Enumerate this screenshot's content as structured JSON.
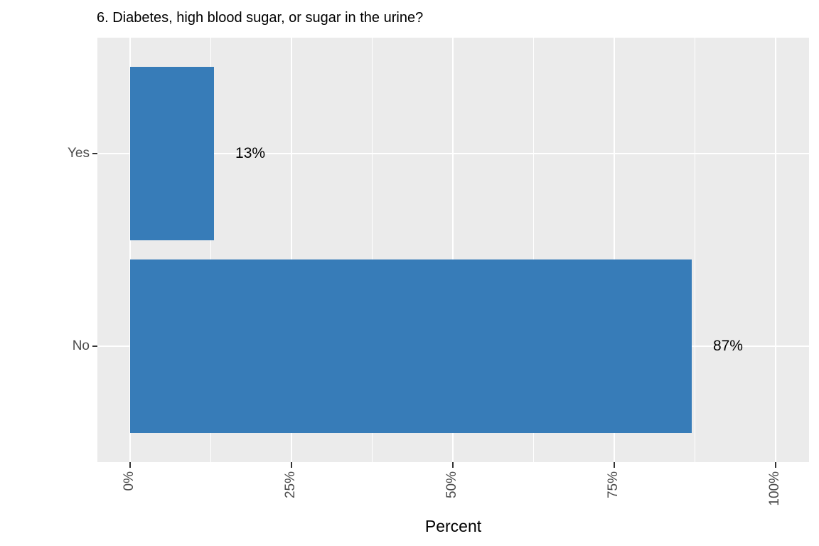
{
  "chart_data": {
    "type": "bar",
    "orientation": "horizontal",
    "title": "6. Diabetes, high blood sugar, or sugar in the urine?",
    "xlabel": "Percent",
    "ylabel": "",
    "categories": [
      "Yes",
      "No"
    ],
    "values": [
      13,
      87
    ],
    "bar_labels": [
      "13%",
      "87%"
    ],
    "x_tick_values": [
      0,
      25,
      50,
      75,
      100
    ],
    "x_tick_labels": [
      "0%",
      "25%",
      "50%",
      "75%",
      "100%"
    ],
    "x_minor_tick_values": [
      12.5,
      37.5,
      62.5,
      87.5
    ],
    "xlim": [
      0,
      100
    ],
    "x_tick_label_rotation_degrees": 90,
    "grid": "white major and minor gridlines on gray panel",
    "legend_position": "none"
  },
  "style": {
    "bar_fill": "#377CB8",
    "panel_background": "#EBEBEB",
    "gridline_color": "#FFFFFF",
    "axis_text_color": "#4D4D4D",
    "tick_mark_color": "#333333",
    "title_color": "#000000",
    "bar_label_color": "#000000"
  }
}
